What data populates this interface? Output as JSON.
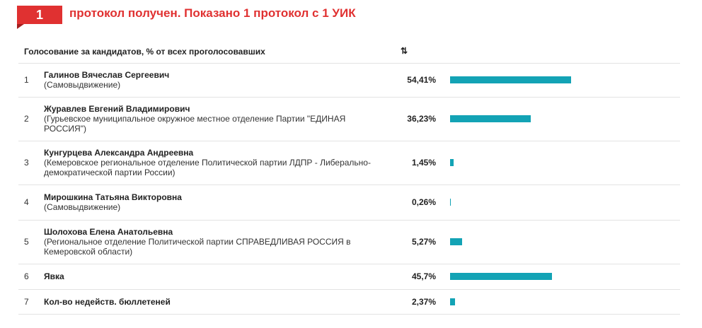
{
  "header": {
    "count": "1",
    "text": "протокол получен. Показано 1 протокол с 1 УИК"
  },
  "table": {
    "column_label": "Голосование за кандидатов, % от всех проголосовавших",
    "sort_icon": "sort-icon",
    "rows": [
      {
        "num": "1",
        "name": "Галинов Вячеслав Сергеевич",
        "party": "(Самовыдвижение)",
        "percent": "54,41%",
        "value": 54.41
      },
      {
        "num": "2",
        "name": "Журавлев Евгений Владимирович",
        "party": "(Гурьевское муниципальное окружное местное отделение Партии \"ЕДИНАЯ РОССИЯ\")",
        "percent": "36,23%",
        "value": 36.23
      },
      {
        "num": "3",
        "name": "Кунгурцева Александра Андреевна",
        "party": "(Кемеровское региональное отделение Политической партии ЛДПР - Либерально-демократической партии России)",
        "percent": "1,45%",
        "value": 1.45
      },
      {
        "num": "4",
        "name": "Мирошкина Татьяна Викторовна",
        "party": "(Самовыдвижение)",
        "percent": "0,26%",
        "value": 0.26
      },
      {
        "num": "5",
        "name": "Шолохова Елена Анатольевна",
        "party": "(Региональное отделение Политической партии СПРАВЕДЛИВАЯ РОССИЯ в Кемеровской области)",
        "percent": "5,27%",
        "value": 5.27
      },
      {
        "num": "6",
        "name": "Явка",
        "party": "",
        "percent": "45,7%",
        "value": 45.7
      },
      {
        "num": "7",
        "name": "Кол-во недейств. бюллетеней",
        "party": "",
        "percent": "2,37%",
        "value": 2.37
      }
    ]
  },
  "colors": {
    "accent": "#e03131",
    "bar": "#13a3b5"
  }
}
